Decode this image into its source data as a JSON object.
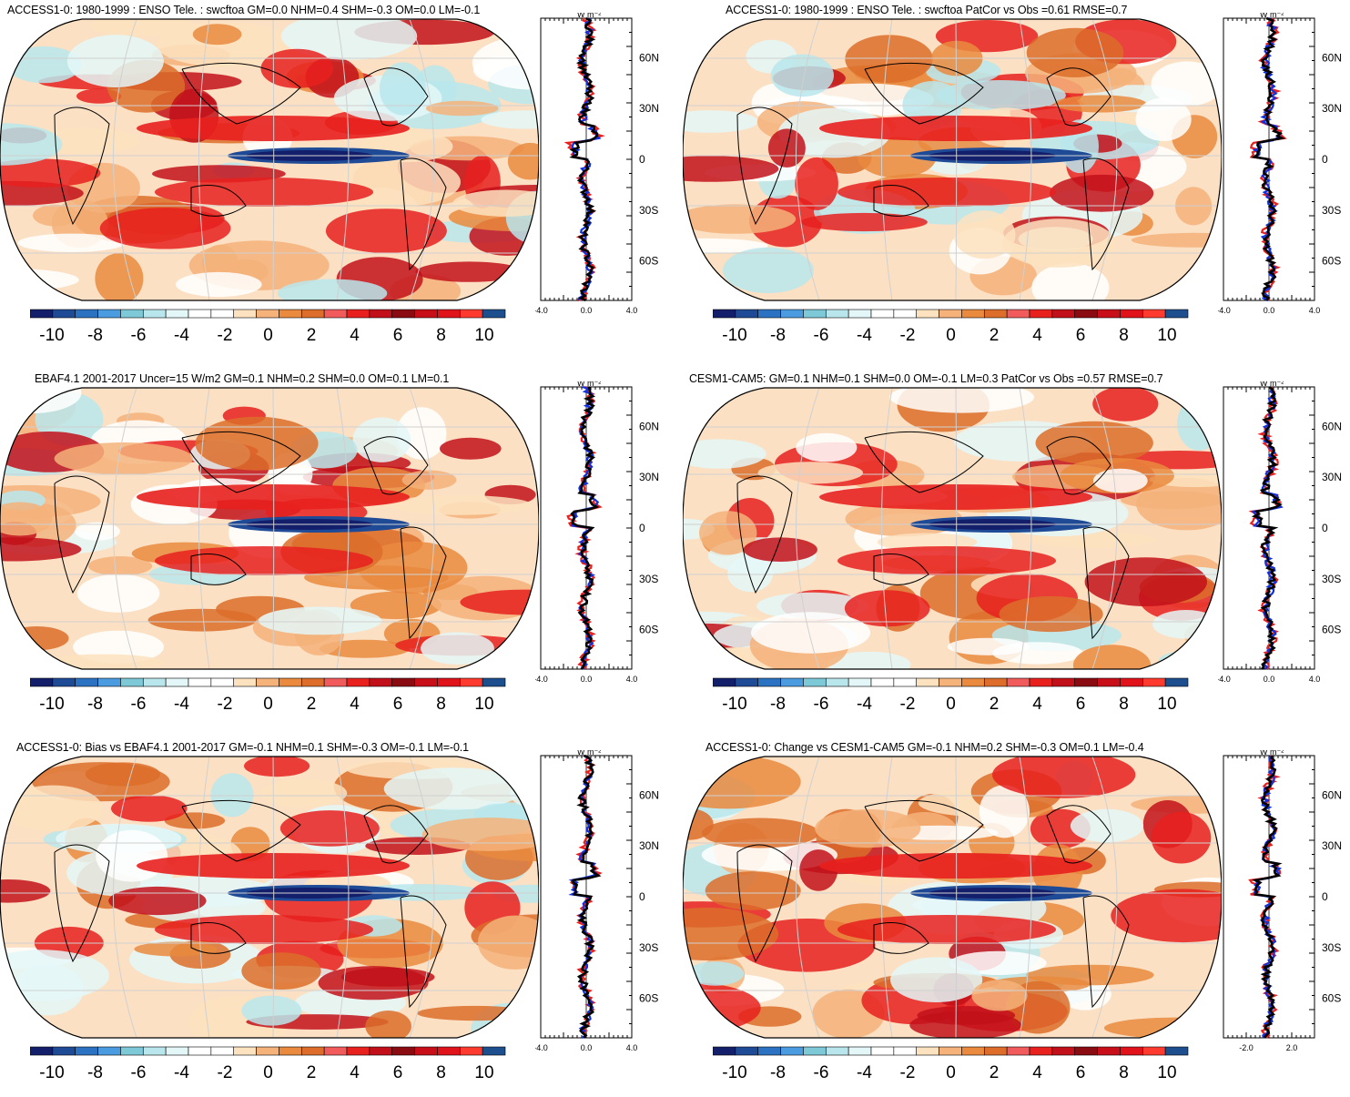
{
  "figure": {
    "colorbar": {
      "ticks": [
        "-10",
        "-8",
        "-6",
        "-4",
        "-2",
        "0",
        "2",
        "4",
        "6",
        "8",
        "10"
      ],
      "colors": [
        "#141f6b",
        "#1f4a96",
        "#2b72c2",
        "#4a9be0",
        "#7ec9d8",
        "#b8e6ec",
        "#e4f7f8",
        "#ffffff",
        "#ffffff",
        "#fde2c0",
        "#f5b27a",
        "#e98a3e",
        "#dc6d2a",
        "#f25b5b",
        "#e8201e",
        "#c2101a",
        "#8b0b12",
        "#c80e18",
        "#e0121a",
        "#ff3b2f",
        "#1d4f8f"
      ]
    },
    "zonal_units": "W m⁻²",
    "lat_labels": [
      "60N",
      "30N",
      "0",
      "30S",
      "60S"
    ],
    "line_colors": {
      "obs": "#e8201e",
      "model_a": "#1030e0",
      "model_b": "#000000"
    },
    "panels": [
      {
        "title": "ACCESS1-0: 1980-1999 : ENSO Tele. : swcftoa GM=0.0 NHM=0.4 SHM=-0.3 OM=0.0 LM=-0.1",
        "x_ticks": [
          "-4.0",
          "0.0",
          "4.0"
        ]
      },
      {
        "title": "ACCESS1-0: 1980-1999 : ENSO Tele. : swcftoa PatCor vs Obs =0.61 RMSE=0.7",
        "x_ticks": [
          "-4.0",
          "0.0",
          "4.0"
        ]
      },
      {
        "title": "EBAF4.1 2001-2017 Uncer=15 W/m2 GM=0.1 NHM=0.2 SHM=0.0 OM=0.1 LM=0.1",
        "x_ticks": [
          "-4.0",
          "0.0",
          "4.0"
        ]
      },
      {
        "title": "CESM1-CAM5: GM=0.1 NHM=0.1 SHM=0.0 OM=-0.1 LM=0.3 PatCor vs Obs =0.57 RMSE=0.7",
        "x_ticks": [
          "-4.0",
          "0.0",
          "4.0"
        ]
      },
      {
        "title": "ACCESS1-0: Bias vs EBAF4.1 2001-2017 GM=-0.1 NHM=0.1 SHM=-0.3 OM=-0.1 LM=-0.1",
        "x_ticks": [
          "-4.0",
          "0.0",
          "4.0"
        ]
      },
      {
        "title": "ACCESS1-0: Change vs CESM1-CAM5 GM=-0.1 NHM=0.2 SHM=-0.3 OM=0.1 LM=-0.4",
        "x_ticks": [
          "-2.0",
          "2.0"
        ]
      }
    ]
  }
}
